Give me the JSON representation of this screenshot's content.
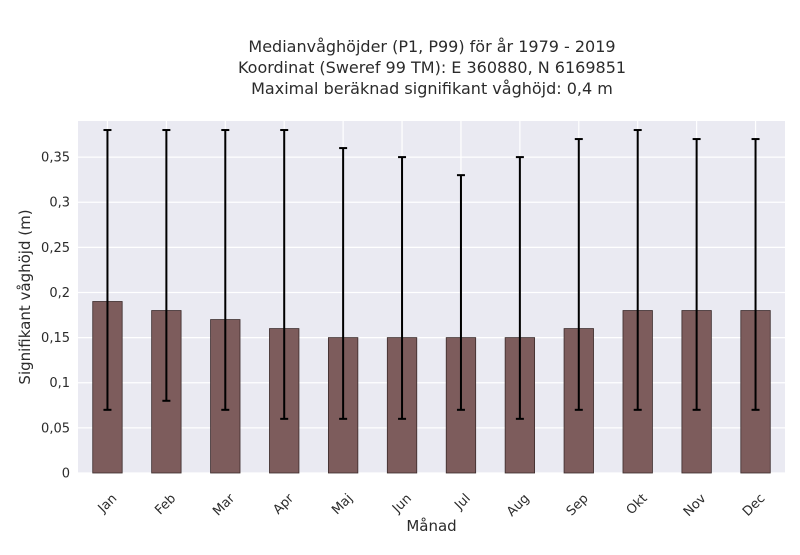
{
  "chart_data": {
    "type": "bar",
    "title_lines": [
      "Medianvåghöjder (P1, P99) för år 1979 - 2019",
      "Koordinat (Sweref 99 TM): E 360880, N 6169851",
      "Maximal beräknad signifikant våghöjd: 0,4 m"
    ],
    "xlabel": "Månad",
    "ylabel": "Signifikant våghöjd (m)",
    "categories": [
      "Jan",
      "Feb",
      "Mar",
      "Apr",
      "Maj",
      "Jun",
      "Jul",
      "Aug",
      "Sep",
      "Okt",
      "Nov",
      "Dec"
    ],
    "values": [
      0.19,
      0.18,
      0.17,
      0.16,
      0.15,
      0.15,
      0.15,
      0.15,
      0.16,
      0.18,
      0.18,
      0.18
    ],
    "error_low": [
      0.07,
      0.08,
      0.07,
      0.06,
      0.06,
      0.06,
      0.07,
      0.06,
      0.07,
      0.07,
      0.07,
      0.07
    ],
    "error_high": [
      0.38,
      0.38,
      0.38,
      0.38,
      0.36,
      0.35,
      0.33,
      0.35,
      0.37,
      0.38,
      0.37,
      0.37
    ],
    "ylim": [
      0,
      0.39
    ],
    "yticks": [
      0,
      0.05,
      0.1,
      0.15,
      0.2,
      0.25,
      0.3,
      0.35
    ],
    "ytick_labels": [
      "0",
      "0,05",
      "0,1",
      "0,15",
      "0,2",
      "0,25",
      "0,3",
      "0,35"
    ],
    "grid": true,
    "colors": {
      "bar": "#7d5c5c",
      "bar_edge": "#3a2a2a",
      "plot_bg": "#eaeaf2",
      "grid": "#ffffff",
      "error": "#000000"
    }
  }
}
